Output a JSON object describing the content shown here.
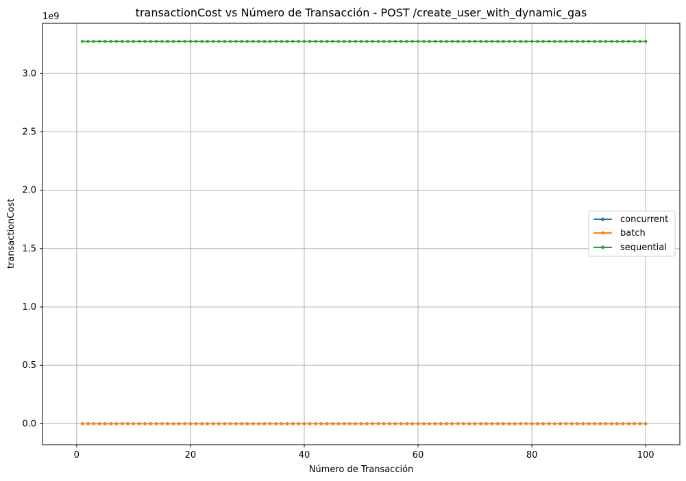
{
  "chart_data": {
    "type": "line",
    "title": "transactionCost vs Número de Transacción - POST /create_user_with_dynamic_gas",
    "xlabel": "Número de Transacción",
    "ylabel": "transactionCost",
    "y_offset_text": "1e9",
    "x": {
      "start": 1,
      "end": 100,
      "step": 1
    },
    "xlim": [
      -6,
      106
    ],
    "ylim": [
      -0.18,
      3.43
    ],
    "xticks": [
      0,
      20,
      40,
      60,
      80,
      100
    ],
    "xtick_labels": [
      "0",
      "20",
      "40",
      "60",
      "80",
      "100"
    ],
    "yticks": [
      0.0,
      0.5,
      1.0,
      1.5,
      2.0,
      2.5,
      3.0
    ],
    "ytick_labels": [
      "0.0",
      "0.5",
      "1.0",
      "1.5",
      "2.0",
      "2.5",
      "3.0"
    ],
    "grid": true,
    "legend_position": "center-right",
    "series": [
      {
        "name": "concurrent",
        "color": "#1f77b4",
        "y_constant": 0.0
      },
      {
        "name": "batch",
        "color": "#ff7f0e",
        "y_constant": 0.0
      },
      {
        "name": "sequential",
        "color": "#2ca02c",
        "y_constant": 3.275
      }
    ]
  }
}
